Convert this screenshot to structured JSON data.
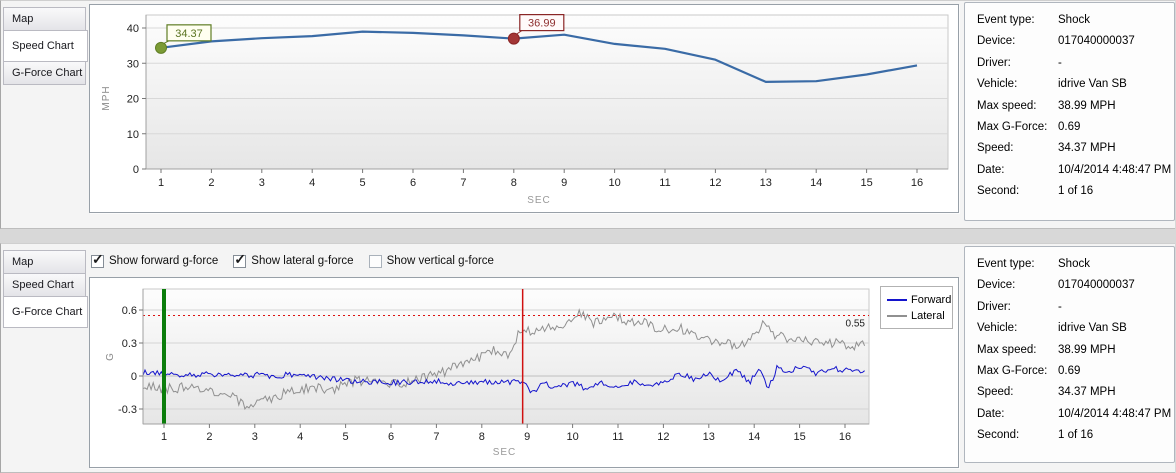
{
  "tabs": [
    "Map",
    "Speed Chart",
    "G-Force Chart"
  ],
  "panels": {
    "speed": {
      "selected_tab": "Speed Chart"
    },
    "gforce": {
      "selected_tab": "G-Force Chart",
      "checkboxes": [
        {
          "label": "Show forward g-force",
          "checked": true
        },
        {
          "label": "Show lateral g-force",
          "checked": true
        },
        {
          "label": "Show vertical g-force",
          "checked": false
        }
      ],
      "legend": [
        {
          "name": "Forward",
          "color": "#1414cc"
        },
        {
          "name": "Lateral",
          "color": "#909090"
        }
      ]
    }
  },
  "event_details": {
    "rows": [
      {
        "label": "Event type:",
        "value": "Shock"
      },
      {
        "label": "Device:",
        "value": "017040000037"
      },
      {
        "label": "Driver:",
        "value": "-"
      },
      {
        "label": "Vehicle:",
        "value": "idrive Van SB"
      },
      {
        "label": "Max speed:",
        "value": "38.99 MPH"
      },
      {
        "label": "Max G-Force:",
        "value": "0.69"
      },
      {
        "label": "Speed:",
        "value": "34.37 MPH"
      },
      {
        "label": "Date:",
        "value": "10/4/2014 4:48:47 PM"
      },
      {
        "label": "Second:",
        "value": "1 of 16"
      }
    ]
  },
  "icons": {
    "checkbox_check": "✓"
  },
  "chart_data": [
    {
      "type": "line",
      "title": "Speed Chart",
      "xlabel": "SEC",
      "ylabel": "MPH",
      "x": [
        1,
        2,
        3,
        4,
        5,
        6,
        7,
        8,
        9,
        10,
        11,
        12,
        13,
        14,
        15,
        16
      ],
      "values": [
        34.37,
        36.2,
        37.1,
        37.7,
        38.99,
        38.6,
        37.9,
        36.99,
        38.1,
        35.5,
        34.1,
        31.0,
        24.7,
        24.9,
        26.8,
        29.4
      ],
      "ylim": [
        0,
        42
      ],
      "yticks": [
        0,
        10,
        20,
        30,
        40
      ],
      "xticks": [
        1,
        2,
        3,
        4,
        5,
        6,
        7,
        8,
        9,
        10,
        11,
        12,
        13,
        14,
        15,
        16
      ],
      "grid": "horizontal",
      "line_color": "#3a6ba6",
      "markers": [
        {
          "x": 1,
          "y": 34.37,
          "label": "34.37",
          "color": "#7b9b35",
          "edge": "#5f7d24",
          "text_color": "#5a7320",
          "label_bg": "#fffff0"
        },
        {
          "x": 8,
          "y": 36.99,
          "label": "36.99",
          "color": "#a33636",
          "edge": "#8a2525",
          "text_color": "#8e2f2f",
          "label_bg": "#fffafa"
        }
      ]
    },
    {
      "type": "line",
      "title": "G-Force Chart",
      "xlabel": "SEC",
      "ylabel": "G",
      "xlim": [
        0.537,
        16.45
      ],
      "ylim": [
        -0.436,
        0.79
      ],
      "yticks": [
        -0.3,
        0,
        0.3,
        0.6
      ],
      "xticks": [
        1,
        2,
        3,
        4,
        5,
        6,
        7,
        8,
        9,
        10,
        11,
        12,
        13,
        14,
        15,
        16
      ],
      "grid": "horizontal",
      "threshold": {
        "y": 0.55,
        "label": "0.55",
        "color": "#dd1111"
      },
      "vlines": [
        {
          "x": 1.0,
          "color": "#0b7d0b",
          "width": 4,
          "name": "event-start-line"
        },
        {
          "x": 8.9,
          "color": "#d01010",
          "width": 1.5,
          "name": "shock-second-line"
        }
      ],
      "legend_position": "right",
      "series": [
        {
          "name": "Lateral",
          "color": "#909090",
          "noise": 0.045,
          "seed": 1301,
          "anchors": [
            [
              0.54,
              -0.07
            ],
            [
              1,
              -0.12
            ],
            [
              1.5,
              -0.1
            ],
            [
              2,
              -0.13
            ],
            [
              2.5,
              -0.16
            ],
            [
              2.8,
              -0.28
            ],
            [
              3,
              -0.27
            ],
            [
              3.3,
              -0.21
            ],
            [
              3.7,
              -0.15
            ],
            [
              4,
              -0.12
            ],
            [
              4.4,
              -0.1
            ],
            [
              4.7,
              -0.13
            ],
            [
              5,
              -0.05
            ],
            [
              5.4,
              -0.04
            ],
            [
              5.7,
              -0.07
            ],
            [
              6,
              -0.08
            ],
            [
              6.4,
              -0.06
            ],
            [
              6.7,
              -0.02
            ],
            [
              7,
              0.01
            ],
            [
              7.4,
              0.08
            ],
            [
              7.7,
              0.12
            ],
            [
              8,
              0.18
            ],
            [
              8.3,
              0.24
            ],
            [
              8.6,
              0.17
            ],
            [
              8.85,
              0.44
            ],
            [
              9,
              0.4
            ],
            [
              9.3,
              0.43
            ],
            [
              9.7,
              0.44
            ],
            [
              10,
              0.52
            ],
            [
              10.2,
              0.58
            ],
            [
              10.4,
              0.48
            ],
            [
              10.7,
              0.52
            ],
            [
              11,
              0.54
            ],
            [
              11.2,
              0.48
            ],
            [
              11.5,
              0.51
            ],
            [
              11.8,
              0.44
            ],
            [
              12,
              0.42
            ],
            [
              12.3,
              0.45
            ],
            [
              12.6,
              0.38
            ],
            [
              13,
              0.33
            ],
            [
              13.4,
              0.29
            ],
            [
              13.7,
              0.27
            ],
            [
              14,
              0.35
            ],
            [
              14.2,
              0.52
            ],
            [
              14.4,
              0.38
            ],
            [
              14.7,
              0.34
            ],
            [
              15,
              0.36
            ],
            [
              15.3,
              0.32
            ],
            [
              15.6,
              0.31
            ],
            [
              16,
              0.28
            ]
          ]
        },
        {
          "name": "Forward",
          "color": "#1414cc",
          "noise": 0.026,
          "seed": 707,
          "anchors": [
            [
              0.54,
              0.03
            ],
            [
              1,
              0.02
            ],
            [
              1.5,
              0.01
            ],
            [
              2,
              0.02
            ],
            [
              2.5,
              0
            ],
            [
              3,
              0.01
            ],
            [
              3.5,
              0
            ],
            [
              4,
              0.02
            ],
            [
              4.5,
              -0.02
            ],
            [
              5,
              -0.04
            ],
            [
              5.5,
              -0.05
            ],
            [
              6,
              -0.06
            ],
            [
              6.5,
              -0.05
            ],
            [
              7,
              -0.05
            ],
            [
              7.5,
              -0.07
            ],
            [
              8,
              -0.05
            ],
            [
              8.5,
              -0.06
            ],
            [
              8.9,
              -0.05
            ],
            [
              9.1,
              -0.15
            ],
            [
              9.4,
              -0.05
            ],
            [
              9.6,
              -0.12
            ],
            [
              10,
              -0.06
            ],
            [
              10.3,
              -0.12
            ],
            [
              10.6,
              -0.05
            ],
            [
              11,
              -0.1
            ],
            [
              11.4,
              -0.05
            ],
            [
              11.7,
              -0.1
            ],
            [
              12,
              -0.05
            ],
            [
              12.4,
              0.02
            ],
            [
              12.7,
              -0.04
            ],
            [
              13,
              0.03
            ],
            [
              13.3,
              -0.05
            ],
            [
              13.6,
              0.06
            ],
            [
              13.9,
              -0.06
            ],
            [
              14.1,
              0.07
            ],
            [
              14.3,
              -0.12
            ],
            [
              14.5,
              0.07
            ],
            [
              14.8,
              0.05
            ],
            [
              15.1,
              0.08
            ],
            [
              15.4,
              0.02
            ],
            [
              15.7,
              0.07
            ],
            [
              16,
              0.05
            ]
          ]
        }
      ]
    }
  ]
}
